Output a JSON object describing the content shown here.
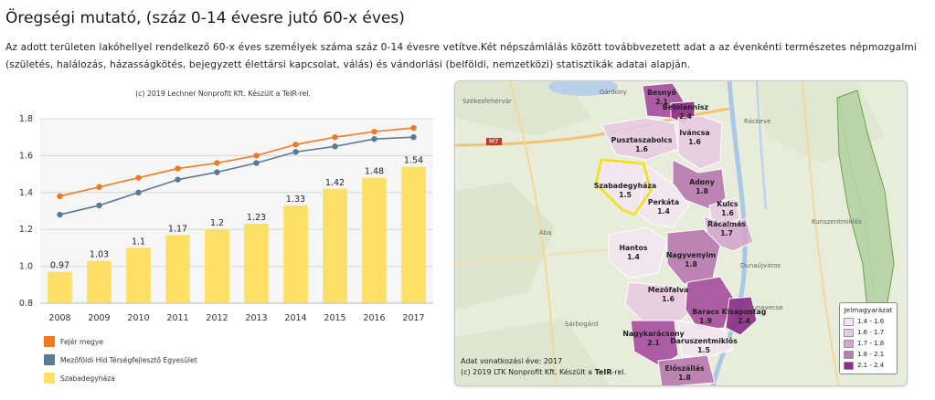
{
  "page": {
    "title": "Öregségi mutató, (száz 0-14 évesre jutó 60-x éves)",
    "description": "Az adott területen lakóhellyel rendelkező 60-x éves személyek száma száz 0-14 évesre vetítve.Két népszámlálás között továbbvezetett adat a az évenkénti természetes népmozgalmi (születés, halálozás, házasságkötés, bejegyzett élettársi kapcsolat, válás) és vándorlási (belföldi, nemzetközi) statisztikák adatai alapján."
  },
  "chart_credit": "(c) 2019 Lechner Nonprofit Kft. Készült a TeIR-rel.",
  "chart_data": {
    "type": "bar",
    "categories": [
      "2008",
      "2009",
      "2010",
      "2011",
      "2012",
      "2013",
      "2014",
      "2015",
      "2016",
      "2017"
    ],
    "ylim": [
      0.8,
      1.8
    ],
    "yticks": [
      "0.8",
      "1.0",
      "1.2",
      "1.4",
      "1.6",
      "1.8"
    ],
    "grid": true,
    "legend_position": "bottom-left",
    "series": [
      {
        "name": "Fejér megye",
        "type": "line",
        "color": "#f07a22",
        "values": [
          1.38,
          1.43,
          1.48,
          1.53,
          1.56,
          1.6,
          1.66,
          1.7,
          1.73,
          1.75
        ]
      },
      {
        "name": "Mezőföldi Híd Térségfejlesztő Egyesület",
        "type": "line",
        "color": "#5b7a96",
        "values": [
          1.28,
          1.33,
          1.4,
          1.47,
          1.51,
          1.56,
          1.62,
          1.65,
          1.69,
          1.7
        ]
      },
      {
        "name": "Szabadegyháza",
        "type": "bar",
        "color": "#ffe066",
        "values": [
          0.97,
          1.03,
          1.1,
          1.17,
          1.2,
          1.23,
          1.33,
          1.42,
          1.48,
          1.54
        ],
        "labels": [
          "0.97",
          "1.03",
          "1.1",
          "1.17",
          "1.2",
          "1.23",
          "1.33",
          "1.42",
          "1.48",
          "1.54"
        ]
      }
    ]
  },
  "map": {
    "settlements": [
      {
        "name": "Besnyő",
        "value": "2.1",
        "color": "#a54f9d"
      },
      {
        "name": "Beloiannisz",
        "value": "2.4",
        "color": "#8c2e85"
      },
      {
        "name": "Pusztaszabolcs",
        "value": "1.6",
        "color": "#e6cbe2"
      },
      {
        "name": "Iváncsa",
        "value": "1.6",
        "color": "#e6cbe2"
      },
      {
        "name": "Szabadegyháza",
        "value": "1.5",
        "color": "#f2e6f0"
      },
      {
        "name": "Adony",
        "value": "1.8",
        "color": "#b67bb0"
      },
      {
        "name": "Perkáta",
        "value": "1.4",
        "color": "#f2e6f0"
      },
      {
        "name": "Kulcs",
        "value": "1.6",
        "color": "#e6cbe2"
      },
      {
        "name": "Rácalmás",
        "value": "1.7",
        "color": "#d3a7cd"
      },
      {
        "name": "Hantos",
        "value": "1.4",
        "color": "#f2e6f0"
      },
      {
        "name": "Nagyvenyim",
        "value": "1.8",
        "color": "#b67bb0"
      },
      {
        "name": "Mezőfalva",
        "value": "1.6",
        "color": "#e6cbe2"
      },
      {
        "name": "Baracs",
        "value": "1.9",
        "color": "#a54f9d"
      },
      {
        "name": "Kisapostag",
        "value": "2.4",
        "color": "#8c2e85"
      },
      {
        "name": "Nagykarácsony",
        "value": "2.1",
        "color": "#a54f9d"
      },
      {
        "name": "Daruszentmiklós",
        "value": "1.5",
        "color": "#f2e6f0"
      },
      {
        "name": "Előszállás",
        "value": "1.8",
        "color": "#b67bb0"
      }
    ],
    "background_places": [
      "Gárdony",
      "Székesfehérvár",
      "Ráckeve",
      "Aba",
      "Kunszentmiklós",
      "Dunaújváros",
      "Dunavecse",
      "Sárbogárd",
      "M7"
    ],
    "legend_title": "Jelmagyarázat",
    "legend_items": [
      {
        "label": "1.4 - 1.6",
        "color": "#f2e6f0"
      },
      {
        "label": "1.6 - 1.7",
        "color": "#e6cbe2"
      },
      {
        "label": "1.7 - 1.8",
        "color": "#d3a7cd"
      },
      {
        "label": "1.8 - 2.1",
        "color": "#b67bb0"
      },
      {
        "label": "2.1 - 2.4",
        "color": "#8c2e85"
      }
    ],
    "data_year": "Adat vonatkozási éve: 2017",
    "credit_prefix": "(c) 2019 LTK Nonprofit Kft. Készült a ",
    "credit_brand": "TeIR",
    "credit_suffix": "-rel."
  }
}
